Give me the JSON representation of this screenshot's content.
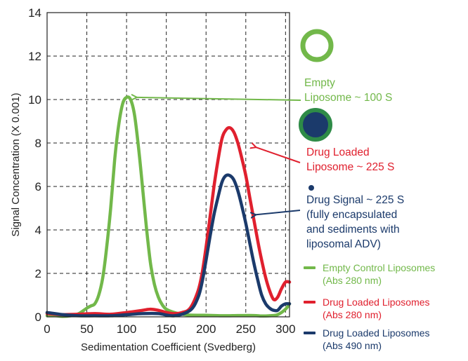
{
  "chart_data": {
    "type": "line",
    "xlabel": "Sedimentation Coefficient (Svedberg)",
    "ylabel": "Signal Concentration (X 0.001)",
    "xlim": [
      0,
      305
    ],
    "ylim": [
      0,
      14
    ],
    "xticks": [
      0,
      50,
      100,
      150,
      200,
      250,
      300
    ],
    "yticks": [
      0,
      2,
      4,
      6,
      8,
      10,
      12,
      14
    ],
    "grid": true,
    "series": [
      {
        "name": "Empty Control Liposomes (Abs 280 nm)",
        "color": "#72b84a",
        "x": [
          0,
          10,
          20,
          30,
          40,
          50,
          55,
          60,
          65,
          70,
          75,
          80,
          85,
          90,
          95,
          100,
          105,
          110,
          115,
          120,
          125,
          130,
          135,
          140,
          145,
          150,
          160,
          170,
          180,
          200,
          220,
          240,
          260,
          270,
          280,
          290,
          300,
          305
        ],
        "y": [
          0.05,
          0.05,
          0.02,
          0.05,
          0.15,
          0.4,
          0.5,
          0.6,
          1.0,
          1.8,
          3.2,
          5.0,
          7.2,
          8.8,
          9.8,
          10.1,
          10.0,
          9.3,
          7.8,
          6.0,
          4.1,
          2.5,
          1.5,
          0.9,
          0.55,
          0.35,
          0.2,
          0.12,
          0.08,
          0.07,
          0.05,
          0.06,
          0.06,
          0.04,
          0.05,
          0.1,
          0.35,
          0.6
        ]
      },
      {
        "name": "Drug Loaded Liposomes (Abs 280 nm)",
        "color": "#e0202e",
        "x": [
          0,
          10,
          20,
          40,
          60,
          80,
          100,
          120,
          130,
          140,
          150,
          160,
          170,
          180,
          190,
          195,
          200,
          205,
          210,
          215,
          220,
          225,
          230,
          235,
          240,
          245,
          250,
          255,
          260,
          265,
          270,
          275,
          280,
          285,
          290,
          295,
          300,
          305
        ],
        "y": [
          0.15,
          0.12,
          0.1,
          0.12,
          0.15,
          0.12,
          0.2,
          0.3,
          0.35,
          0.3,
          0.2,
          0.15,
          0.2,
          0.4,
          1.2,
          2.0,
          3.2,
          4.6,
          6.0,
          7.2,
          8.2,
          8.6,
          8.7,
          8.5,
          8.0,
          7.3,
          6.5,
          5.5,
          4.5,
          3.5,
          2.6,
          1.8,
          1.2,
          0.8,
          0.9,
          1.3,
          1.6,
          1.6
        ]
      },
      {
        "name": "Drug Loaded Liposomes (Abs 490 nm)",
        "color": "#1b3a6b",
        "x": [
          0,
          10,
          20,
          40,
          60,
          80,
          100,
          120,
          140,
          160,
          180,
          190,
          195,
          200,
          205,
          210,
          215,
          220,
          225,
          230,
          235,
          240,
          245,
          250,
          255,
          260,
          265,
          270,
          275,
          280,
          285,
          290,
          295,
          300,
          305
        ],
        "y": [
          0.2,
          0.15,
          0.1,
          0.05,
          0.05,
          0.05,
          0.1,
          0.15,
          0.15,
          0.05,
          0.3,
          0.9,
          1.6,
          2.6,
          3.7,
          4.7,
          5.5,
          6.2,
          6.5,
          6.5,
          6.3,
          5.8,
          5.1,
          4.3,
          3.4,
          2.5,
          1.7,
          1.0,
          0.6,
          0.4,
          0.3,
          0.3,
          0.5,
          0.6,
          0.6
        ]
      }
    ],
    "annotations": [
      {
        "label_lines": [
          "Empty",
          "Liposome ~ 100 S"
        ],
        "color": "#72b84a",
        "points_to": {
          "x": 113,
          "y": 10.1
        }
      },
      {
        "label_lines": [
          "Drug Loaded",
          "Liposome ~ 225 S"
        ],
        "color": "#e0202e",
        "points_to": {
          "x": 263,
          "y": 7.8
        }
      },
      {
        "label_lines": [
          "Drug Signal ~ 225 S",
          "(fully encapsulated",
          "and sediments with",
          "liposomal ADV)"
        ],
        "color": "#1b3a6b",
        "points_to": {
          "x": 263,
          "y": 4.7
        }
      }
    ],
    "icons": [
      {
        "name": "empty-liposome-icon",
        "ring_color": "#72b84a"
      },
      {
        "name": "drug-loaded-liposome-icon",
        "ring_color": "#2e8b47",
        "core_color": "#1b3a6b"
      },
      {
        "name": "drug-signal-dot-icon",
        "core_color": "#1b3a6b"
      }
    ],
    "legend": {
      "placement": "right",
      "items": [
        {
          "lines": [
            "Empty Control Liposomes",
            "(Abs 280 nm)"
          ],
          "color": "#72b84a"
        },
        {
          "lines": [
            "Drug Loaded Liposomes",
            "(Abs 280 nm)"
          ],
          "color": "#e0202e"
        },
        {
          "lines": [
            "Drug Loaded Liposomes",
            "(Abs 490 nm)"
          ],
          "color": "#1b3a6b"
        }
      ]
    }
  }
}
